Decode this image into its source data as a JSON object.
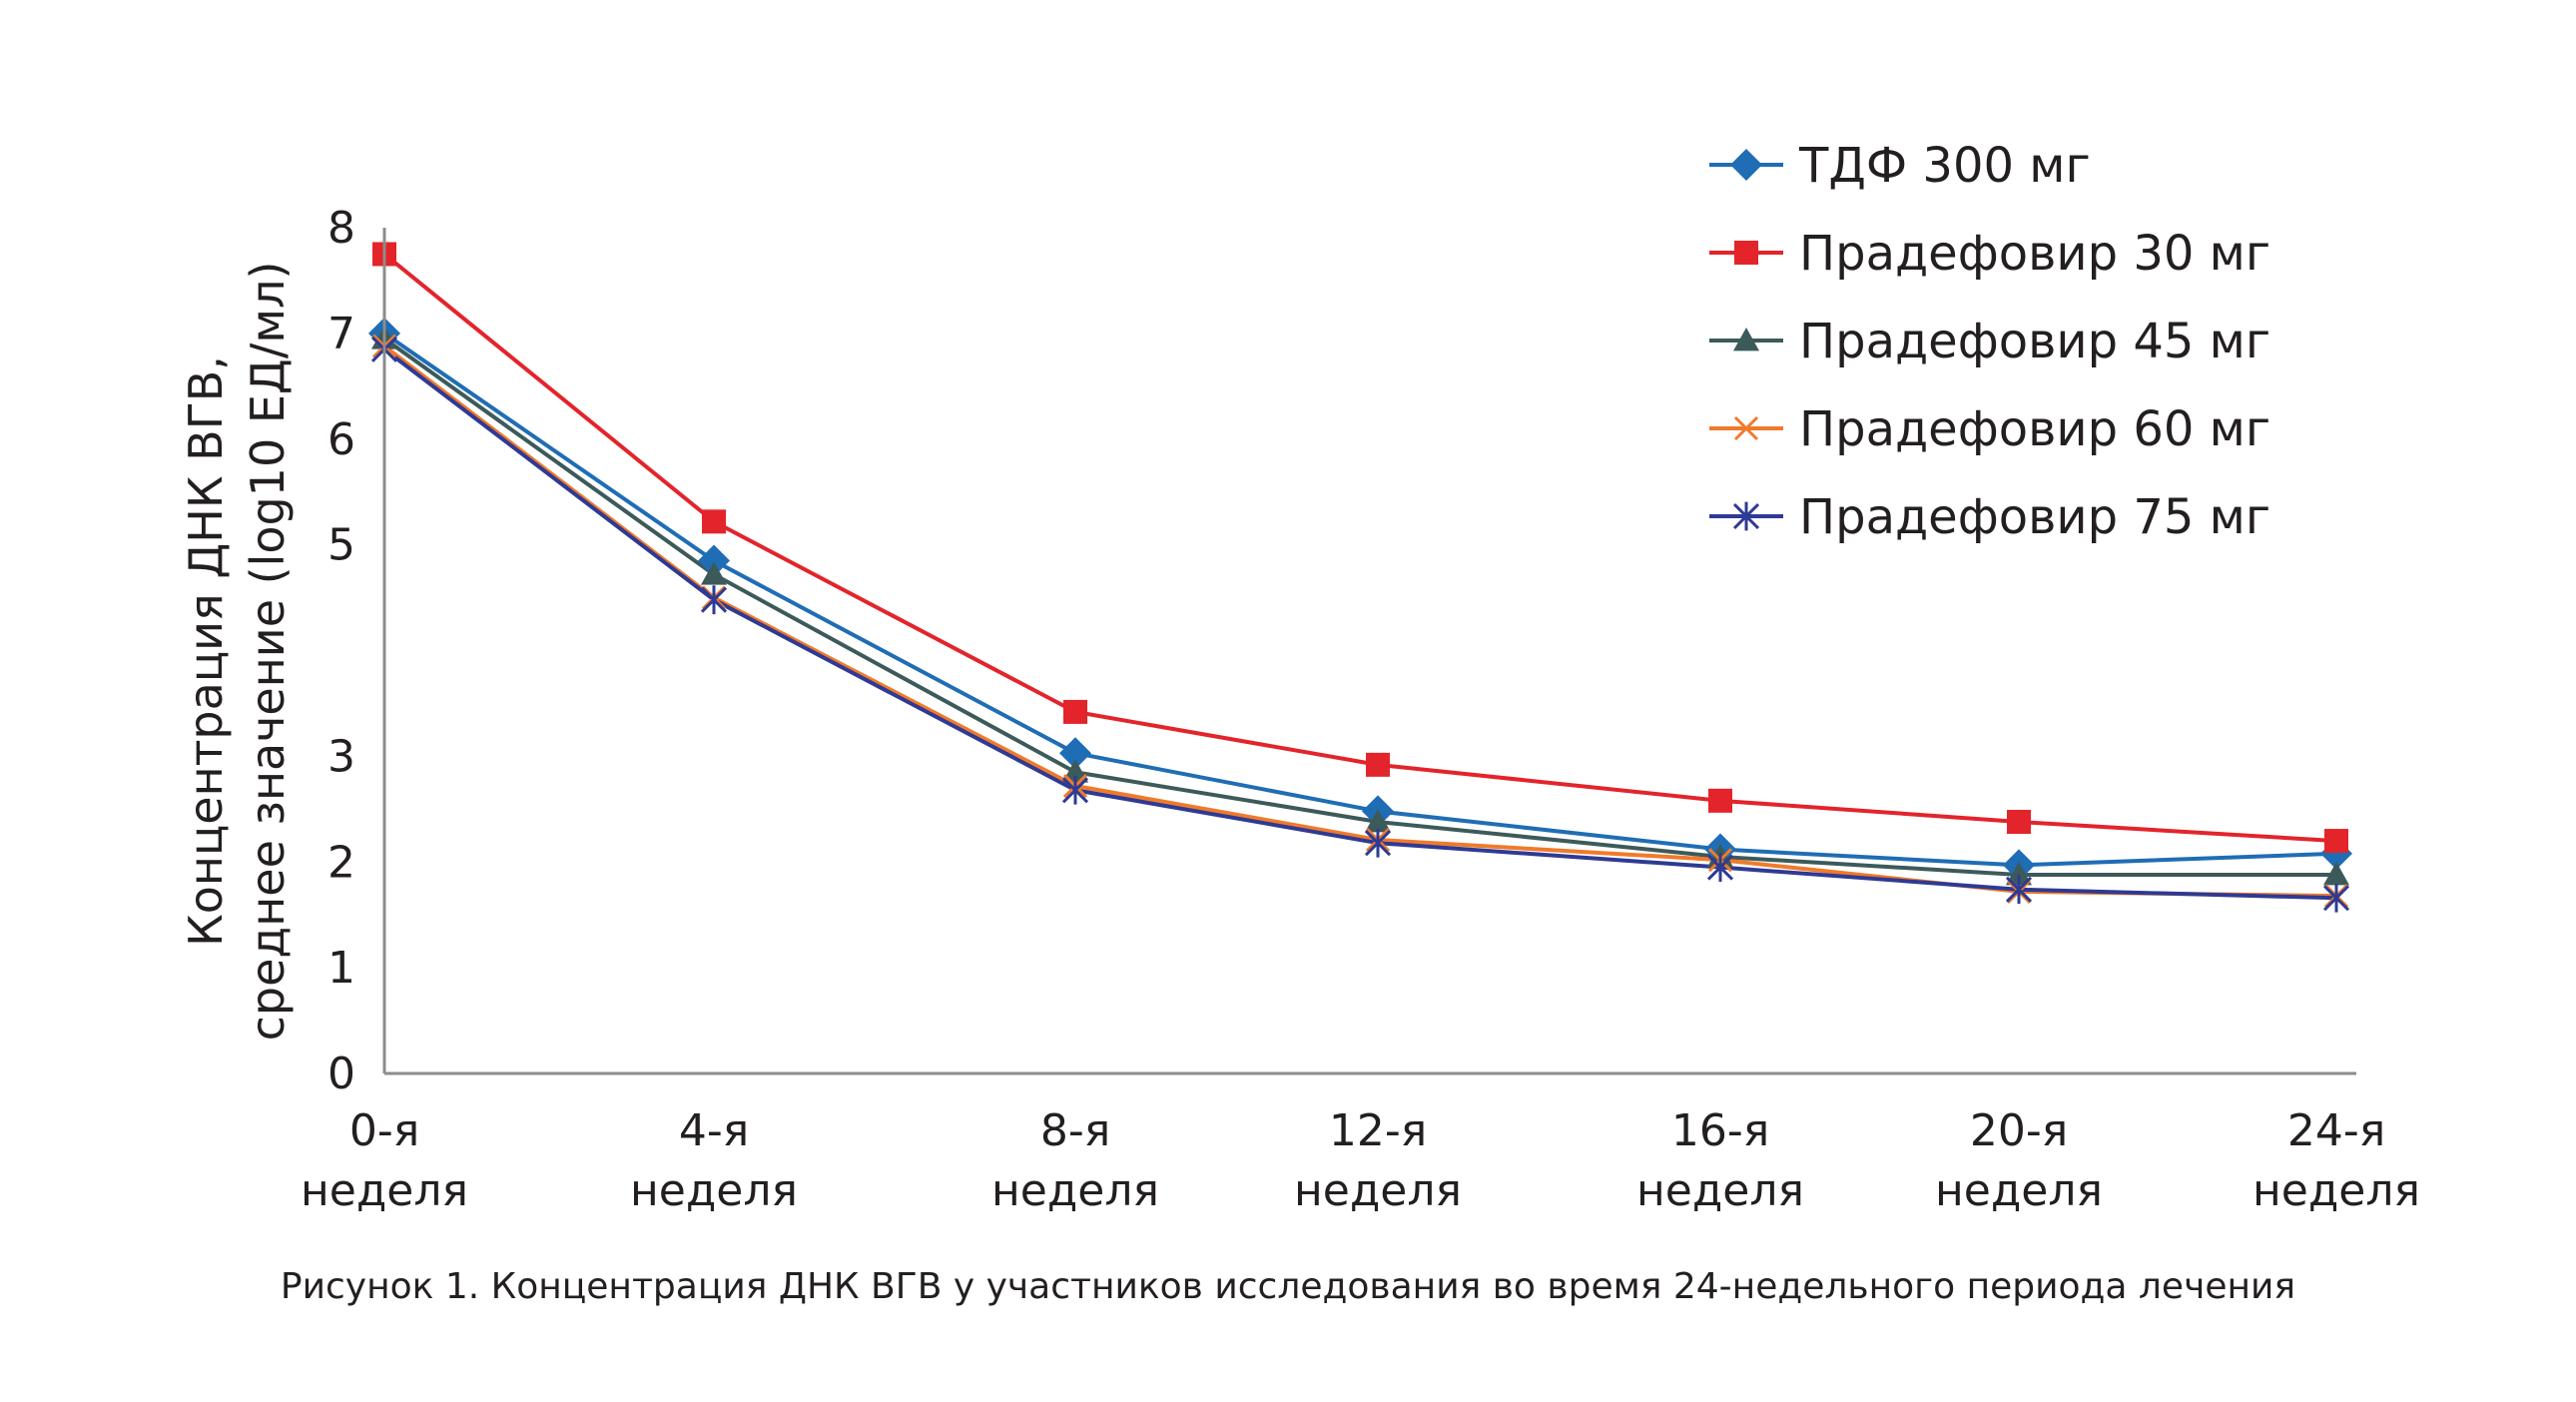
{
  "chart_data": {
    "type": "line",
    "ylabel_lines": [
      "Концентрация ДНК ВГВ,",
      "среднее значение (log10 ЕД/мл)"
    ],
    "xlabel": "",
    "ylim": [
      0,
      8
    ],
    "y_ticks": [
      {
        "value": 0,
        "label": "0"
      },
      {
        "value": 1,
        "label": "1"
      },
      {
        "value": 2,
        "label": "2"
      },
      {
        "value": 3,
        "label": "3"
      },
      {
        "value": 5,
        "label": "5"
      },
      {
        "value": 6,
        "label": "6"
      },
      {
        "value": 7,
        "label": "7"
      },
      {
        "value": 8,
        "label": "8"
      }
    ],
    "categories": [
      [
        "0-я",
        "неделя"
      ],
      [
        "4-я",
        "неделя"
      ],
      [
        "8-я",
        "неделя"
      ],
      [
        "12-я",
        "неделя"
      ],
      [
        "16-я",
        "неделя"
      ],
      [
        "20-я",
        "неделя"
      ],
      [
        "24-я",
        "неделя"
      ]
    ],
    "grid": false,
    "legend_position": "top-right",
    "series": [
      {
        "name": "ТДФ 300 мг",
        "color": "#1f6db5",
        "marker": "diamond",
        "values": [
          7.0,
          4.85,
          3.03,
          2.48,
          2.12,
          1.97,
          2.08
        ]
      },
      {
        "name": "Прадефовир 30 мг",
        "color": "#e3242b",
        "marker": "square",
        "values": [
          7.75,
          5.22,
          3.42,
          2.92,
          2.58,
          2.38,
          2.2
        ]
      },
      {
        "name": "Прадефовир 45 мг",
        "color": "#3d5a5a",
        "marker": "triangle",
        "values": [
          6.95,
          4.72,
          2.85,
          2.38,
          2.05,
          1.88,
          1.88
        ]
      },
      {
        "name": "Прадефовир 60 мг",
        "color": "#f07a2b",
        "marker": "x",
        "values": [
          6.88,
          4.5,
          2.72,
          2.21,
          2.02,
          1.72,
          1.68
        ]
      },
      {
        "name": "Прадефовир 75 мг",
        "color": "#2e3a93",
        "marker": "star",
        "values": [
          6.85,
          4.48,
          2.68,
          2.18,
          1.95,
          1.74,
          1.66
        ]
      }
    ]
  },
  "caption": "Рисунок 1. Концентрация ДНК ВГВ у участников исследования во время 24-недельного периода лечения"
}
